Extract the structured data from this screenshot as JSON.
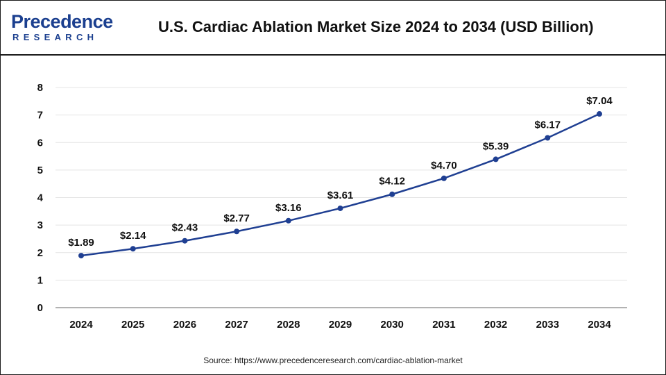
{
  "header": {
    "logo_main": "Precedence",
    "logo_sub": "RESEARCH",
    "title": "U.S. Cardiac Ablation Market Size 2024 to 2034 (USD Billion)"
  },
  "source": "Source: https://www.precedenceresearch.com/cardiac-ablation-market",
  "colors": {
    "line": "#1f3f92",
    "brand": "#1b3f8f",
    "grid": "#e4e4e4",
    "axis": "#999999"
  },
  "chart_data": {
    "type": "line",
    "title": "U.S. Cardiac Ablation Market Size 2024 to 2034 (USD Billion)",
    "xlabel": "",
    "ylabel": "",
    "categories": [
      "2024",
      "2025",
      "2026",
      "2027",
      "2028",
      "2029",
      "2030",
      "2031",
      "2032",
      "2033",
      "2034"
    ],
    "series": [
      {
        "name": "U.S. Cardiac Ablation Market",
        "values": [
          1.89,
          2.14,
          2.43,
          2.77,
          3.16,
          3.61,
          4.12,
          4.7,
          5.39,
          6.17,
          7.04
        ],
        "labels": [
          "$1.89",
          "$2.14",
          "$2.43",
          "$2.77",
          "$3.16",
          "$3.61",
          "$4.12",
          "$4.70",
          "$5.39",
          "$6.17",
          "$7.04"
        ]
      }
    ],
    "ylim": [
      0,
      8
    ],
    "yticks": [
      0,
      1,
      2,
      3,
      4,
      5,
      6,
      7,
      8
    ],
    "grid": true,
    "legend": "none"
  }
}
